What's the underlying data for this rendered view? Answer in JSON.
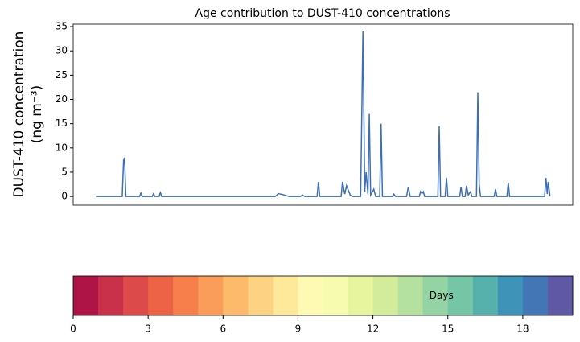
{
  "chart_data": [
    {
      "type": "line",
      "title": "Age contribution to DUST-410 concentrations",
      "ylabel": [
        "DUST-410 concentration",
        "(ng m⁻³)"
      ],
      "color": "#3f6fb0",
      "x": [
        0,
        5.8,
        6.1,
        6.3,
        6.6,
        9.6,
        9.9,
        10.2,
        12.4,
        12.7,
        13,
        13.9,
        14.2,
        14.5,
        39.5,
        40.2,
        41.5,
        42.5,
        45,
        45.5,
        46,
        48.7,
        49,
        49.3,
        54,
        54.3,
        54.8,
        55.2,
        56,
        56.5,
        58.3,
        58.8,
        59.2,
        59.5,
        59.9,
        60.2,
        60.5,
        61.2,
        61.6,
        62.5,
        62.8,
        63.1,
        65.3,
        65.6,
        66,
        68.4,
        68.8,
        69.2,
        71.2,
        71.5,
        71.8,
        72.1,
        72.4,
        75.3,
        75.6,
        75.9,
        76.9,
        77.2,
        77.5,
        80.1,
        80.4,
        80.7,
        81.3,
        81.6,
        82,
        82.5,
        82.8,
        83.8,
        84.1,
        84.4,
        84.7,
        87.7,
        88,
        88.3,
        90.5,
        90.8,
        91.1,
        98.8,
        99.1,
        99.4,
        99.6,
        100
      ],
      "values": [
        0,
        0,
        7.5,
        8,
        0,
        0,
        0.7,
        0,
        0,
        0.6,
        0,
        0,
        0.8,
        0,
        0,
        0.6,
        0.3,
        0,
        0,
        0.3,
        0,
        0,
        3,
        0,
        0,
        3,
        0.5,
        2.2,
        0.3,
        0,
        0,
        34,
        1,
        5,
        0.5,
        17,
        0.3,
        1.5,
        0,
        0,
        15,
        0,
        0,
        0.5,
        0,
        0,
        2,
        0,
        0,
        1,
        0.6,
        1,
        0,
        0,
        14.5,
        0,
        0,
        3.8,
        0,
        0,
        2,
        0,
        0,
        2.2,
        0.3,
        1,
        0,
        0,
        21.5,
        2.5,
        0,
        0,
        1.5,
        0,
        0,
        2.8,
        0,
        0,
        3.8,
        0.5,
        3,
        0
      ],
      "xlim": [
        -5,
        105
      ],
      "ylim": [
        -1.8,
        35.5
      ],
      "yticks": [
        0,
        5,
        10,
        15,
        20,
        25,
        30,
        35
      ]
    },
    {
      "type": "colorbar",
      "label": "Days",
      "lim": [
        0,
        20
      ],
      "ticks": [
        0,
        3,
        6,
        9,
        12,
        15,
        18
      ],
      "colors": [
        "#ae1445",
        "#c9304a",
        "#dc4a4a",
        "#ec6346",
        "#f67f4b",
        "#fa9d5b",
        "#fdba6b",
        "#fed283",
        "#fee99b",
        "#fef9b3",
        "#f6fbb0",
        "#e8f59f",
        "#d2ec9b",
        "#b4e0a0",
        "#94d3a3",
        "#74c6a7",
        "#56b0ab",
        "#3d93b8",
        "#4276b4",
        "#5e58a5"
      ]
    }
  ]
}
